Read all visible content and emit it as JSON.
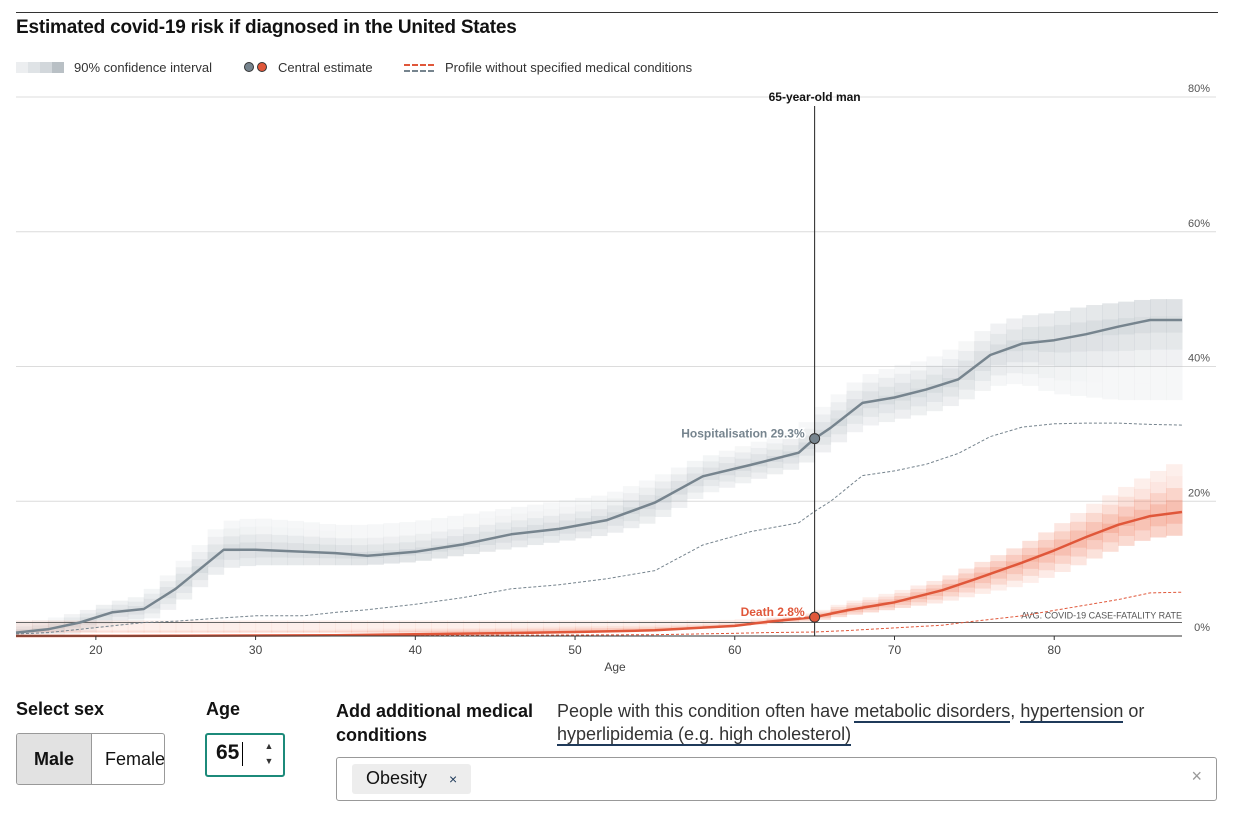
{
  "chart_data": {
    "type": "line",
    "title": "Estimated covid-19 risk if diagnosed in the United States",
    "xlabel": "Age",
    "ylabel": "",
    "xlim": [
      15,
      88
    ],
    "ylim": [
      0,
      80
    ],
    "x_ticks": [
      20,
      30,
      40,
      50,
      60,
      70,
      80
    ],
    "y_ticks": [
      0,
      20,
      40,
      60,
      80
    ],
    "y_tick_labels": [
      "0%",
      "20%",
      "40%",
      "60%",
      "80%"
    ],
    "legend": {
      "ci": "90% confidence interval",
      "central": "Central estimate",
      "profile": "Profile without specified medical conditions"
    },
    "selected_age": 65,
    "marker_label": "65-year-old man",
    "reference_line": {
      "label": "AVG. COVID-19 CASE-FATALITY RATE",
      "value": 2
    },
    "series": [
      {
        "name": "Hospitalisation",
        "label": "Hospitalisation 29.3%",
        "color": "#76848e",
        "x": [
          15,
          17,
          19,
          21,
          23,
          25,
          28,
          30,
          33,
          35,
          37,
          40,
          43,
          46,
          49,
          52,
          55,
          58,
          61,
          64,
          65,
          66,
          68,
          70,
          72,
          74,
          76,
          78,
          80,
          82,
          84,
          86,
          88
        ],
        "values": [
          0.5,
          1,
          2,
          3.5,
          4,
          7,
          12.8,
          12.8,
          12.5,
          12.3,
          11.9,
          12.5,
          13.6,
          15.1,
          15.9,
          17.2,
          19.8,
          23.7,
          25.4,
          27.2,
          29.3,
          30.9,
          34.6,
          35.4,
          36.6,
          38.1,
          41.7,
          43.4,
          43.9,
          44.8,
          45.9,
          46.9,
          46.9
        ],
        "ci_low": [
          0,
          0,
          0.3,
          1.5,
          2,
          4.5,
          10,
          10.5,
          10.5,
          10.5,
          10.5,
          11,
          12,
          13,
          14,
          15,
          17,
          21,
          23,
          25,
          26.5,
          28,
          31,
          32,
          33,
          34.5,
          37,
          37.5,
          36,
          35.5,
          35,
          35,
          35
        ],
        "ci_high": [
          2,
          2.5,
          3.5,
          5,
          6,
          10,
          17,
          17.5,
          17,
          16.5,
          16.5,
          17,
          18,
          19,
          20,
          21,
          23.5,
          26.5,
          28.5,
          30.5,
          33,
          35,
          38.5,
          40,
          41,
          43,
          46,
          47.5,
          48,
          49,
          49.5,
          50,
          50
        ],
        "profile": [
          0.3,
          0.5,
          1,
          1.5,
          2,
          2.2,
          2.7,
          3,
          3,
          3.5,
          3.9,
          4.7,
          5.7,
          7,
          7.6,
          8.5,
          9.7,
          13.5,
          15.5,
          16.8,
          18.5,
          20,
          23.8,
          24.5,
          25.5,
          27.1,
          29.6,
          31,
          31.5,
          31.6,
          31.6,
          31.4,
          31.3
        ]
      },
      {
        "name": "Death",
        "label": "Death 2.8%",
        "color": "#e0573a",
        "x": [
          15,
          20,
          25,
          30,
          35,
          40,
          45,
          50,
          55,
          60,
          62,
          65,
          67,
          70,
          73,
          75,
          78,
          80,
          82,
          84,
          86,
          88
        ],
        "values": [
          0,
          0.02,
          0.05,
          0.08,
          0.12,
          0.25,
          0.4,
          0.6,
          0.85,
          1.5,
          2.1,
          2.8,
          3.8,
          5,
          6.8,
          8.4,
          10.9,
          12.7,
          14.7,
          16.5,
          17.8,
          18.4
        ],
        "ci_low": [
          0.5,
          0.5,
          0.5,
          0.5,
          0.5,
          0.5,
          0.5,
          0.5,
          0.8,
          1.5,
          1.8,
          2.2,
          3,
          4,
          5,
          6,
          7.5,
          9,
          11,
          13,
          14.5,
          15
        ],
        "ci_high": [
          2.3,
          2.3,
          2.3,
          2.3,
          2.3,
          2.3,
          2.3,
          2.3,
          2.3,
          2.4,
          2.7,
          3.5,
          5,
          6.5,
          8.5,
          10.5,
          13.5,
          16,
          19,
          21.5,
          24,
          26
        ],
        "profile": [
          0,
          0,
          0,
          0.02,
          0.05,
          0.08,
          0.1,
          0.15,
          0.2,
          0.4,
          0.5,
          0.6,
          0.8,
          1.2,
          1.6,
          2.2,
          3,
          3.8,
          4.6,
          5.4,
          6.4,
          6.5
        ]
      }
    ]
  },
  "controls": {
    "sex_label": "Select sex",
    "sex_options": [
      "Male",
      "Female"
    ],
    "sex_selected": "Male",
    "age_label": "Age",
    "age_value": "65",
    "conditions_label": "Add additional medical conditions",
    "conditions_note_prefix": "People with this condition often have",
    "conditions_links": [
      "metabolic disorders",
      "hypertension",
      "hyperlipidemia (e.g. high cholesterol)"
    ],
    "conditions_separator": ",",
    "conditions_or": "or",
    "selected_conditions": [
      "Obesity"
    ],
    "tag_remove_symbol": "×",
    "clear_symbol": "×"
  },
  "colors": {
    "grey": "#76848e",
    "red": "#e0573a",
    "ci_grey": "#b6bec4",
    "ci_red": "#f08468",
    "focus": "#1c8a7a",
    "link_underline": "#1f3a5a"
  }
}
